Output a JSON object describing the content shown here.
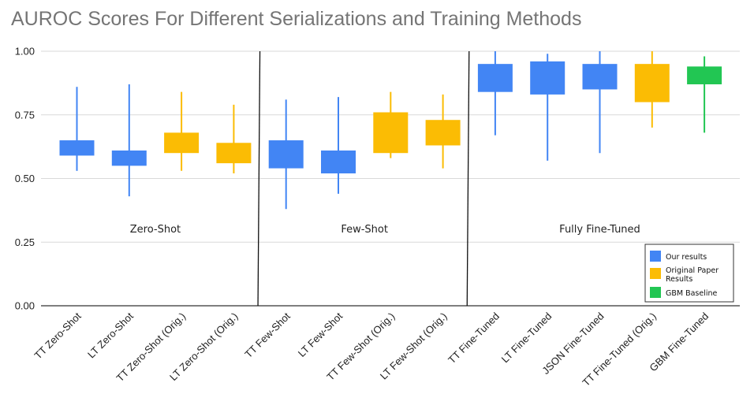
{
  "chart_data": {
    "type": "candlestick",
    "title": "AUROC Scores For Different Serializations and Training Methods",
    "ylim": [
      0,
      1
    ],
    "yticks": [
      "0.00",
      "0.25",
      "0.50",
      "0.75",
      "1.00"
    ],
    "grid": true,
    "legend_position": "bottom-right",
    "groups": [
      {
        "label": "Zero-Shot",
        "categories": [
          0,
          1,
          2,
          3
        ]
      },
      {
        "label": "Few-Shot",
        "categories": [
          4,
          5,
          6,
          7
        ]
      },
      {
        "label": "Fully Fine-Tuned",
        "categories": [
          8,
          9,
          10,
          11,
          12
        ]
      }
    ],
    "legend": [
      {
        "label": "Our results",
        "color": "#4285F4"
      },
      {
        "label": "Original Paper Results",
        "color": "#FBBC04"
      },
      {
        "label": "GBM Baseline",
        "color": "#22C653"
      }
    ],
    "series_colors": {
      "our": "#4285F4",
      "orig": "#FBBC04",
      "gbm": "#22C653"
    },
    "categories": [
      {
        "label": "TT Zero-Shot",
        "series": "our",
        "min": 0.53,
        "q1": 0.59,
        "q3": 0.65,
        "max": 0.86
      },
      {
        "label": "LT Zero-Shot",
        "series": "our",
        "min": 0.43,
        "q1": 0.55,
        "q3": 0.61,
        "max": 0.87
      },
      {
        "label": "TT Zero-Shot (Orig.)",
        "series": "orig",
        "min": 0.53,
        "q1": 0.6,
        "q3": 0.68,
        "max": 0.84
      },
      {
        "label": "LT Zero-Shot (Orig.)",
        "series": "orig",
        "min": 0.52,
        "q1": 0.56,
        "q3": 0.64,
        "max": 0.79
      },
      {
        "label": "TT Few-Shot",
        "series": "our",
        "min": 0.38,
        "q1": 0.54,
        "q3": 0.65,
        "max": 0.81
      },
      {
        "label": "LT Few-Shot",
        "series": "our",
        "min": 0.44,
        "q1": 0.52,
        "q3": 0.61,
        "max": 0.82
      },
      {
        "label": "TT Few-Shot (Orig.)",
        "series": "orig",
        "min": 0.58,
        "q1": 0.6,
        "q3": 0.76,
        "max": 0.84
      },
      {
        "label": "LT Few-Shot (Orig.)",
        "series": "orig",
        "min": 0.54,
        "q1": 0.63,
        "q3": 0.73,
        "max": 0.83
      },
      {
        "label": "TT Fine-Tuned",
        "series": "our",
        "min": 0.67,
        "q1": 0.84,
        "q3": 0.95,
        "max": 1.0
      },
      {
        "label": "LT Fine-Tuned",
        "series": "our",
        "min": 0.57,
        "q1": 0.83,
        "q3": 0.96,
        "max": 0.99
      },
      {
        "label": "JSON Fine-Tuned",
        "series": "our",
        "min": 0.6,
        "q1": 0.85,
        "q3": 0.95,
        "max": 1.0
      },
      {
        "label": "TT Fine-Tuned (Orig.)",
        "series": "orig",
        "min": 0.7,
        "q1": 0.8,
        "q3": 0.95,
        "max": 1.0
      },
      {
        "label": "GBM Fine-Tuned",
        "series": "gbm",
        "min": 0.68,
        "q1": 0.87,
        "q3": 0.94,
        "max": 0.98
      }
    ]
  }
}
